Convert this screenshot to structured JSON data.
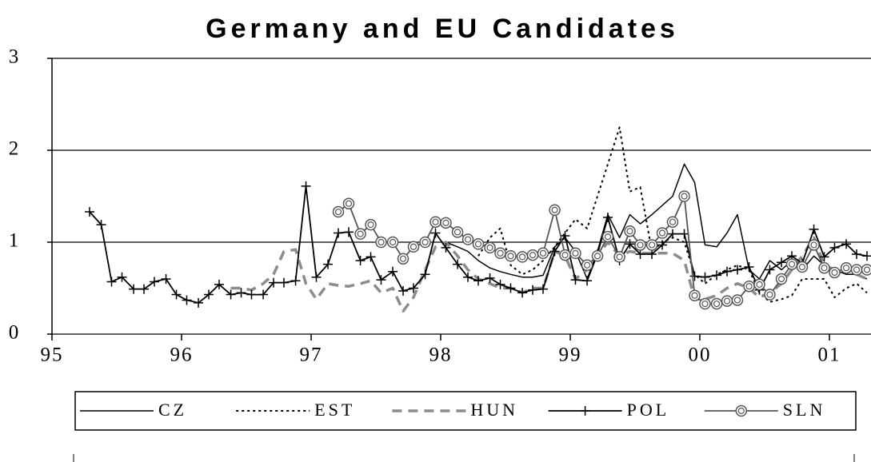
{
  "chart_data": {
    "type": "line",
    "title": "Germany and EU Candidates",
    "x": [
      1995.29,
      1995.38,
      1995.46,
      1995.54,
      1995.63,
      1995.71,
      1995.79,
      1995.88,
      1995.96,
      1996.04,
      1996.13,
      1996.21,
      1996.29,
      1996.38,
      1996.46,
      1996.54,
      1996.63,
      1996.71,
      1996.79,
      1996.88,
      1996.96,
      1997.04,
      1997.13,
      1997.21,
      1997.29,
      1997.38,
      1997.46,
      1997.54,
      1997.63,
      1997.71,
      1997.79,
      1997.88,
      1997.96,
      1998.04,
      1998.13,
      1998.21,
      1998.29,
      1998.38,
      1998.46,
      1998.54,
      1998.63,
      1998.71,
      1998.79,
      1998.88,
      1998.96,
      1999.04,
      1999.13,
      1999.21,
      1999.29,
      1999.38,
      1999.46,
      1999.54,
      1999.63,
      1999.71,
      1999.79,
      1999.88,
      1999.96,
      2000.04,
      2000.13,
      2000.21,
      2000.29,
      2000.38,
      2000.46,
      2000.54,
      2000.63,
      2000.71,
      2000.79,
      2000.88,
      2000.96,
      2001.04,
      2001.13,
      2001.21,
      2001.29
    ],
    "series": [
      {
        "name": "CZ",
        "color": "#000000",
        "style": "solid",
        "marker": "none",
        "width": 1.5,
        "values": [
          null,
          null,
          null,
          null,
          null,
          null,
          null,
          null,
          null,
          null,
          null,
          null,
          null,
          null,
          null,
          null,
          null,
          null,
          null,
          null,
          null,
          null,
          null,
          null,
          null,
          null,
          null,
          null,
          null,
          null,
          null,
          null,
          null,
          1.0,
          0.95,
          0.9,
          0.8,
          0.72,
          0.68,
          0.65,
          0.62,
          0.62,
          0.64,
          0.95,
          1.05,
          0.9,
          0.6,
          0.9,
          1.3,
          1.05,
          1.3,
          1.2,
          1.3,
          1.4,
          1.5,
          1.85,
          1.65,
          0.97,
          0.95,
          1.1,
          1.3,
          0.7,
          0.6,
          0.8,
          0.7,
          0.8,
          0.7,
          0.85,
          0.75,
          0.7,
          0.65,
          0.65,
          0.6
        ]
      },
      {
        "name": "EST",
        "color": "#000000",
        "style": "dotted",
        "marker": "none",
        "width": 2,
        "values": [
          null,
          null,
          null,
          null,
          null,
          null,
          null,
          null,
          null,
          null,
          null,
          null,
          null,
          null,
          null,
          null,
          null,
          null,
          null,
          null,
          null,
          null,
          null,
          null,
          null,
          null,
          null,
          null,
          null,
          null,
          null,
          null,
          null,
          null,
          null,
          null,
          0.85,
          1.05,
          1.15,
          0.75,
          0.65,
          0.7,
          0.8,
          0.95,
          1.1,
          1.25,
          1.15,
          1.5,
          1.85,
          2.25,
          1.55,
          1.6,
          0.9,
          1.0,
          1.05,
          1.0,
          0.65,
          0.55,
          0.65,
          0.7,
          0.75,
          0.7,
          0.45,
          0.35,
          0.38,
          0.42,
          0.6,
          0.6,
          0.6,
          0.4,
          0.5,
          0.55,
          0.45
        ]
      },
      {
        "name": "HUN",
        "color": "#8c8c8c",
        "style": "dashed",
        "marker": "none",
        "width": 3.5,
        "values": [
          null,
          null,
          null,
          null,
          null,
          null,
          null,
          null,
          null,
          null,
          null,
          null,
          null,
          0.5,
          0.5,
          0.48,
          0.55,
          0.65,
          0.9,
          0.92,
          0.55,
          0.38,
          0.55,
          0.53,
          0.52,
          0.55,
          0.58,
          0.45,
          0.5,
          0.25,
          0.4,
          0.7,
          0.95,
          1.0,
          0.85,
          0.7,
          0.6,
          0.55,
          0.5,
          0.5,
          0.45,
          0.5,
          0.5,
          0.9,
          0.85,
          0.6,
          0.7,
          0.85,
          1.0,
          0.85,
          0.9,
          0.88,
          0.88,
          0.88,
          0.88,
          0.8,
          0.38,
          0.38,
          0.42,
          0.5,
          0.55,
          0.5,
          0.4,
          0.45,
          0.55,
          0.7,
          0.85,
          1.05,
          0.75,
          0.7,
          0.7,
          0.65,
          0.6
        ]
      },
      {
        "name": "POL",
        "color": "#000000",
        "style": "solid",
        "marker": "plus",
        "width": 1.8,
        "values": [
          1.33,
          1.19,
          0.57,
          0.62,
          0.49,
          0.49,
          0.57,
          0.6,
          0.43,
          0.37,
          0.34,
          0.43,
          0.54,
          0.43,
          0.45,
          0.43,
          0.43,
          0.56,
          0.56,
          0.58,
          1.61,
          0.62,
          0.76,
          1.1,
          1.11,
          0.8,
          0.84,
          0.59,
          0.68,
          0.47,
          0.5,
          0.65,
          1.1,
          0.94,
          0.76,
          0.62,
          0.58,
          0.61,
          0.54,
          0.5,
          0.45,
          0.48,
          0.49,
          0.9,
          1.07,
          0.59,
          0.58,
          0.87,
          1.27,
          0.8,
          0.98,
          0.87,
          0.87,
          0.97,
          1.09,
          1.09,
          0.63,
          0.62,
          0.64,
          0.68,
          0.7,
          0.73,
          0.48,
          0.7,
          0.78,
          0.85,
          0.77,
          1.14,
          0.84,
          0.94,
          0.98,
          0.87,
          0.85
        ]
      },
      {
        "name": "SLN",
        "color": "#555555",
        "style": "solid",
        "marker": "circle",
        "width": 1.8,
        "values": [
          null,
          null,
          null,
          null,
          null,
          null,
          null,
          null,
          null,
          null,
          null,
          null,
          null,
          null,
          null,
          null,
          null,
          null,
          null,
          null,
          null,
          null,
          null,
          1.33,
          1.42,
          1.09,
          1.19,
          1.0,
          1.0,
          0.82,
          0.95,
          1.0,
          1.22,
          1.21,
          1.11,
          1.03,
          0.98,
          0.94,
          0.88,
          0.85,
          0.84,
          0.86,
          0.88,
          1.35,
          0.86,
          0.88,
          0.75,
          0.85,
          1.06,
          0.84,
          1.12,
          0.97,
          0.97,
          1.1,
          1.22,
          1.5,
          0.42,
          0.33,
          0.33,
          0.36,
          0.37,
          0.52,
          0.54,
          0.43,
          0.6,
          0.76,
          0.73,
          0.97,
          0.72,
          0.67,
          0.72,
          0.7,
          0.7
        ]
      }
    ],
    "xlim": [
      1995,
      2001.32
    ],
    "xticks": [
      {
        "value": 1995,
        "label": "95"
      },
      {
        "value": 1996,
        "label": "96"
      },
      {
        "value": 1997,
        "label": "97"
      },
      {
        "value": 1998,
        "label": "98"
      },
      {
        "value": 1999,
        "label": "99"
      },
      {
        "value": 2000,
        "label": "00"
      },
      {
        "value": 2001,
        "label": "01"
      }
    ],
    "ylim": [
      0,
      3
    ],
    "yticks": [
      0,
      1,
      2,
      3
    ],
    "grid": true,
    "legend": "bottom"
  }
}
